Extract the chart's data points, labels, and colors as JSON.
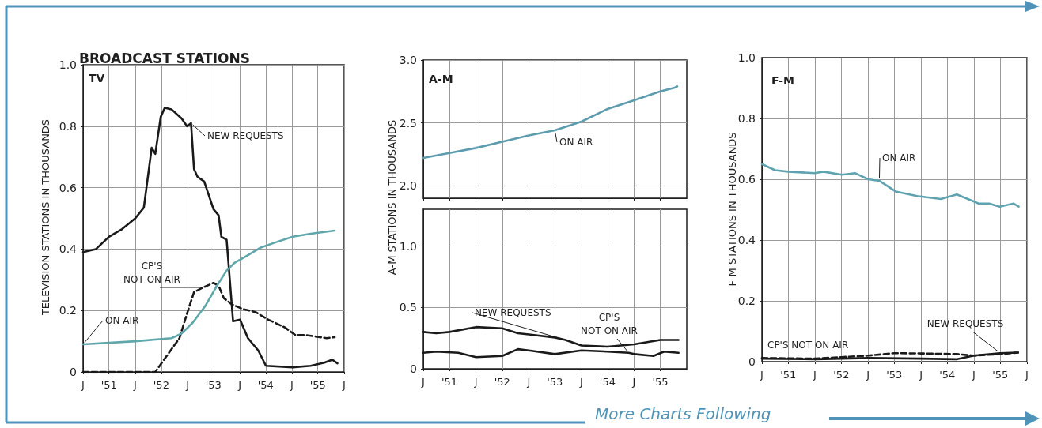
{
  "chart_data": [
    {
      "type": "line",
      "title": "BROADCAST STATIONS",
      "subtitle": "TV",
      "ylabel": "TELEVISION STATIONS IN THOUSANDS",
      "xlim": [
        "1951-01",
        "1956-01"
      ],
      "ylim": [
        0,
        1
      ],
      "xticks": [
        {
          "value": "1951-01",
          "label": "J"
        },
        {
          "value": "1951-07",
          "label": "'51"
        },
        {
          "value": "1952-01",
          "label": "J"
        },
        {
          "value": "1952-07",
          "label": "'52"
        },
        {
          "value": "1953-01",
          "label": "J"
        },
        {
          "value": "1953-07",
          "label": "'53"
        },
        {
          "value": "1954-01",
          "label": "J"
        },
        {
          "value": "1954-07",
          "label": "'54"
        },
        {
          "value": "1955-01",
          "label": "J"
        },
        {
          "value": "1955-07",
          "label": "'55"
        },
        {
          "value": "1956-01",
          "label": "J"
        }
      ],
      "yticks": [
        0,
        0.2,
        0.4,
        0.6,
        0.8,
        {
          "value": 1,
          "label": "1.0"
        }
      ],
      "grid": true,
      "marker": "none",
      "series": [
        {
          "name": "NEW REQUESTS",
          "color": "#1a1a1a",
          "x": [
            "1951-01",
            "1951-04",
            "1951-07",
            "1951-10",
            "1952-01",
            "1952-03",
            "1952-04-25",
            "1952-05-20",
            "1952-06-27",
            "1952-07-25",
            "1952-09-10",
            "1952-11-20",
            "1952-12-28",
            "1953-01-25",
            "1953-02-15",
            "1953-03-12",
            "1953-04-27",
            "1953-07-01",
            "1953-08-06",
            "1953-08-25",
            "1953-10-01",
            "1953-10-18",
            "1953-11-15",
            "1954-01-03",
            "1954-02-27",
            "1954-05-10",
            "1954-07-03",
            "1955-01-06",
            "1955-05-12",
            "1955-08-15",
            "1955-10-10",
            "1955-11-15"
          ],
          "values": [
            0.39,
            0.4,
            0.44,
            0.465,
            0.5,
            0.535,
            0.73,
            0.71,
            0.83,
            0.86,
            0.855,
            0.825,
            0.8,
            0.81,
            0.66,
            0.635,
            0.62,
            0.53,
            0.51,
            0.44,
            0.43,
            0.33,
            0.165,
            0.17,
            0.11,
            0.07,
            0.02,
            0.015,
            0.02,
            0.03,
            0.04,
            0.028
          ]
        },
        {
          "name": "CP'S\nNOT ON AIR",
          "color": "#1a1a1a",
          "line_style": "dashed",
          "x": [
            "1951-01",
            "1951-07",
            "1952-01",
            "1952-05-20",
            "1952-08-20",
            "1952-11-05",
            "1952-12-28",
            "1953-02-15",
            "1953-04-20",
            "1953-07-01",
            "1953-08-06",
            "1953-09-12",
            "1953-11-06",
            "1954-01-20",
            "1954-04-20",
            "1954-07-20",
            "1954-11-12",
            "1955-01-25",
            "1955-04-06",
            "1955-06-20",
            "1955-09-01",
            "1955-10-27"
          ],
          "values": [
            0,
            0,
            0,
            0,
            0.06,
            0.11,
            0.19,
            0.26,
            0.275,
            0.29,
            0.28,
            0.24,
            0.22,
            0.205,
            0.195,
            0.17,
            0.145,
            0.12,
            0.12,
            0.115,
            0.11,
            0.113
          ]
        },
        {
          "name": "ON AIR",
          "color": "#5fa7ab",
          "x": [
            "1951-01",
            "1952-01",
            "1952-09-10",
            "1952-11-20",
            "1953-02-05",
            "1953-05-05",
            "1953-07-18",
            "1953-10-01",
            "1953-11-25",
            "1954-02-27",
            "1954-05-28",
            "1954-08-28",
            "1955-01-06",
            "1955-05-12",
            "1955-10-27"
          ],
          "values": [
            0.09,
            0.1,
            0.11,
            0.125,
            0.16,
            0.215,
            0.275,
            0.33,
            0.355,
            0.38,
            0.405,
            0.42,
            0.44,
            0.45,
            0.46
          ]
        }
      ]
    },
    {
      "type": "line",
      "subtitle": "A-M",
      "xlim": [
        "1951-01",
        "1956-01"
      ],
      "ylim": [
        1.9,
        3
      ],
      "xticks": [
        {
          "value": "1951-01",
          "label": null
        },
        {
          "value": "1951-07",
          "label": null
        },
        {
          "value": "1952-01",
          "label": null
        },
        {
          "value": "1952-07",
          "label": null
        },
        {
          "value": "1953-01",
          "label": null
        },
        {
          "value": "1953-07",
          "label": null
        },
        {
          "value": "1954-01",
          "label": null
        },
        {
          "value": "1954-07",
          "label": null
        },
        {
          "value": "1955-01",
          "label": null
        },
        {
          "value": "1955-07",
          "label": null
        }
      ],
      "yticks": [
        {
          "value": 2,
          "label": "2.0"
        },
        2.5,
        {
          "value": 3,
          "label": "3.0"
        }
      ],
      "grid": true,
      "marker": "none",
      "tick_labels": "y",
      "series": [
        {
          "name": "ON AIR",
          "color": "#5c9cae",
          "x": [
            "1951-01",
            "1951-07",
            "1952-01",
            "1952-07",
            "1953-01",
            "1953-07",
            "1954-01",
            "1954-07",
            "1955-01",
            "1955-07",
            "1955-10-10",
            "1955-10-27"
          ],
          "values": [
            2.22,
            2.26,
            2.3,
            2.35,
            2.4,
            2.44,
            2.51,
            2.61,
            2.68,
            2.75,
            2.78,
            2.79
          ]
        }
      ]
    },
    {
      "type": "line",
      "ylabel": "A-M STATIONS IN THOUSANDS",
      "xlim": [
        "1951-01",
        "1956-01"
      ],
      "ylim": [
        0,
        1.3
      ],
      "xticks": [
        {
          "value": "1951-01",
          "label": "J"
        },
        {
          "value": "1951-07",
          "label": "'51"
        },
        {
          "value": "1952-01",
          "label": "J"
        },
        {
          "value": "1952-07",
          "label": "'52"
        },
        {
          "value": "1953-01",
          "label": "J"
        },
        {
          "value": "1953-07",
          "label": "'53"
        },
        {
          "value": "1954-01",
          "label": "J"
        },
        {
          "value": "1954-07",
          "label": "'54"
        },
        {
          "value": "1955-01",
          "label": "J"
        },
        {
          "value": "1955-07",
          "label": "'55"
        }
      ],
      "yticks": [
        0,
        0.5,
        {
          "value": 1,
          "label": "1.0"
        }
      ],
      "grid": true,
      "marker": "none",
      "series": [
        {
          "name": "NEW REQUESTS",
          "color": "#1a1a1a",
          "x": [
            "1951-01",
            "1951-04",
            "1951-07",
            "1952-01",
            "1952-07",
            "1952-10-18",
            "1953-01",
            "1953-07",
            "1953-09-12",
            "1954-01",
            "1954-07",
            "1955-01",
            "1955-07",
            "1955-11-05"
          ],
          "values": [
            0.3,
            0.29,
            0.3,
            0.34,
            0.33,
            0.29,
            0.28,
            0.255,
            0.235,
            0.19,
            0.18,
            0.2,
            0.235,
            0.235
          ]
        },
        {
          "name": "CP'S\nNOT ON AIR",
          "color": "#1a1a1a",
          "x": [
            "1951-01",
            "1951-04",
            "1951-09",
            "1952-01",
            "1952-07",
            "1952-10-18",
            "1953-01",
            "1953-07",
            "1954-01",
            "1954-07",
            "1954-11-25",
            "1955-01",
            "1955-05-15",
            "1955-07-28",
            "1955-11-05"
          ],
          "values": [
            0.13,
            0.14,
            0.13,
            0.095,
            0.105,
            0.16,
            0.15,
            0.12,
            0.15,
            0.14,
            0.13,
            0.12,
            0.105,
            0.14,
            0.13
          ]
        }
      ]
    },
    {
      "type": "line",
      "subtitle": "F-M",
      "ylabel": "F-M STATIONS IN THOUSANDS",
      "xlim": [
        "1951-01",
        "1956-01"
      ],
      "ylim": [
        0,
        1
      ],
      "xticks": [
        {
          "value": "1951-01",
          "label": "J"
        },
        {
          "value": "1951-07",
          "label": "'51"
        },
        {
          "value": "1952-01",
          "label": "J"
        },
        {
          "value": "1952-07",
          "label": "'52"
        },
        {
          "value": "1953-01",
          "label": "J"
        },
        {
          "value": "1953-07",
          "label": "'53"
        },
        {
          "value": "1954-01",
          "label": "J"
        },
        {
          "value": "1954-07",
          "label": "'54"
        },
        {
          "value": "1955-01",
          "label": "J"
        },
        {
          "value": "1955-07",
          "label": "'55"
        },
        {
          "value": "1956-01",
          "label": "J"
        }
      ],
      "yticks": [
        0,
        0.2,
        0.4,
        0.6,
        0.8,
        {
          "value": 1,
          "label": "1.0"
        }
      ],
      "grid": true,
      "marker": "none",
      "annotations": [
        "More Charts Following"
      ],
      "series": [
        {
          "name": "ON AIR",
          "color": "#5fa3b0",
          "x": [
            "1951-01",
            "1951-04",
            "1951-07",
            "1952-01",
            "1952-02-27",
            "1952-07-05",
            "1952-10-06",
            "1953-01",
            "1953-03-20",
            "1953-07-10",
            "1953-12-05",
            "1954-05-18",
            "1954-09-05",
            "1954-11-20",
            "1955-02-02",
            "1955-04-15",
            "1955-06-27",
            "1955-10-01",
            "1955-11-05"
          ],
          "values": [
            0.65,
            0.63,
            0.625,
            0.62,
            0.625,
            0.615,
            0.62,
            0.6,
            0.595,
            0.56,
            0.545,
            0.535,
            0.55,
            0.535,
            0.52,
            0.52,
            0.51,
            0.52,
            0.51
          ]
        },
        {
          "name": "CP'S NOT ON AIR",
          "color": "#1a1a1a",
          "line_style": "dashed",
          "x": [
            "1951-01",
            "1952-01",
            "1952-07",
            "1953-01",
            "1953-07",
            "1954-01",
            "1954-09",
            "1955-01",
            "1955-07",
            "1955-11"
          ],
          "values": [
            0.012,
            0.01,
            0.015,
            0.02,
            0.028,
            0.027,
            0.025,
            0.02,
            0.025,
            0.03
          ]
        },
        {
          "name": "NEW REQUESTS",
          "color": "#1a1a1a",
          "x": [
            "1951-01",
            "1952-01",
            "1953-01",
            "1954-01",
            "1954-09",
            "1955-01",
            "1955-07",
            "1955-11"
          ],
          "values": [
            0.01,
            0.008,
            0.012,
            0.01,
            0.008,
            0.02,
            0.028,
            0.03
          ]
        }
      ]
    }
  ]
}
